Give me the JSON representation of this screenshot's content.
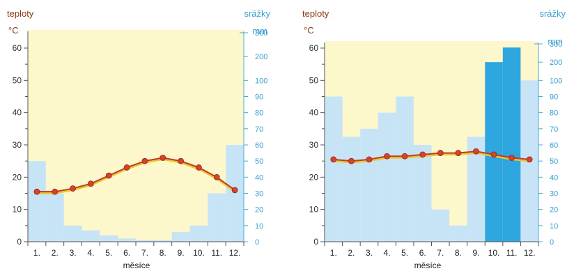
{
  "charts": [
    {
      "temp_label": "teploty",
      "temp_unit": "°C",
      "prec_label": "srážky",
      "prec_unit": "mm",
      "xlabel": "měsíce"
    },
    {
      "temp_label": "teploty",
      "temp_unit": "°C",
      "prec_label": "srážky",
      "prec_unit": "mm",
      "xlabel": "měsíce"
    }
  ],
  "chart_data": [
    {
      "type": "bar",
      "categories": [
        "1.",
        "2.",
        "3.",
        "4.",
        "5.",
        "6.",
        "7.",
        "8.",
        "9.",
        "10.",
        "11.",
        "12."
      ],
      "series": [
        {
          "name": "srážky",
          "type": "bar",
          "axis": "right",
          "values": [
            50,
            30,
            10,
            7,
            4,
            2,
            1,
            1,
            6,
            10,
            30,
            60
          ]
        },
        {
          "name": "teploty",
          "type": "line",
          "axis": "left",
          "values": [
            15.5,
            15.5,
            16.5,
            18,
            20.5,
            23,
            25,
            26,
            25,
            23,
            20,
            16
          ]
        }
      ],
      "y_left": {
        "label": "teploty",
        "unit": "°C",
        "range": [
          0,
          65
        ],
        "ticks": [
          0,
          10,
          20,
          30,
          40,
          50,
          60
        ]
      },
      "y_right": {
        "label": "srážky",
        "unit": "mm",
        "ticks": [
          0,
          10,
          20,
          30,
          40,
          50,
          60,
          70,
          80,
          90,
          100,
          200,
          300
        ]
      },
      "xlabel": "měsíce",
      "colors": {
        "background": "#fdf7cc",
        "bar_light": "#c7e4f6",
        "line": "#c0392b",
        "marker": "#d9412b"
      }
    },
    {
      "type": "bar",
      "categories": [
        "1.",
        "2.",
        "3.",
        "4.",
        "5.",
        "6.",
        "7.",
        "8.",
        "9.",
        "10.",
        "11.",
        "12."
      ],
      "series": [
        {
          "name": "srážky",
          "type": "bar",
          "axis": "right",
          "values": [
            90,
            65,
            70,
            80,
            90,
            60,
            20,
            10,
            65,
            200,
            280,
            100
          ]
        },
        {
          "name": "teploty",
          "type": "line",
          "axis": "left",
          "values": [
            25.5,
            25,
            25.5,
            26.5,
            26.5,
            27,
            27.5,
            27.5,
            28,
            27,
            26,
            25.5
          ]
        }
      ],
      "y_left": {
        "label": "teploty",
        "unit": "°C",
        "range": [
          0,
          65
        ],
        "ticks": [
          0,
          10,
          20,
          30,
          40,
          50,
          60
        ]
      },
      "y_right": {
        "label": "srážky",
        "unit": "mm",
        "ticks": [
          0,
          10,
          20,
          30,
          40,
          50,
          60,
          70,
          80,
          90,
          100,
          200,
          300
        ]
      },
      "xlabel": "měsíce",
      "colors": {
        "background": "#fdf7cc",
        "bar_light": "#c7e4f6",
        "bar_dark": "#2ea6df",
        "line": "#c0392b",
        "marker": "#d9412b"
      }
    }
  ]
}
